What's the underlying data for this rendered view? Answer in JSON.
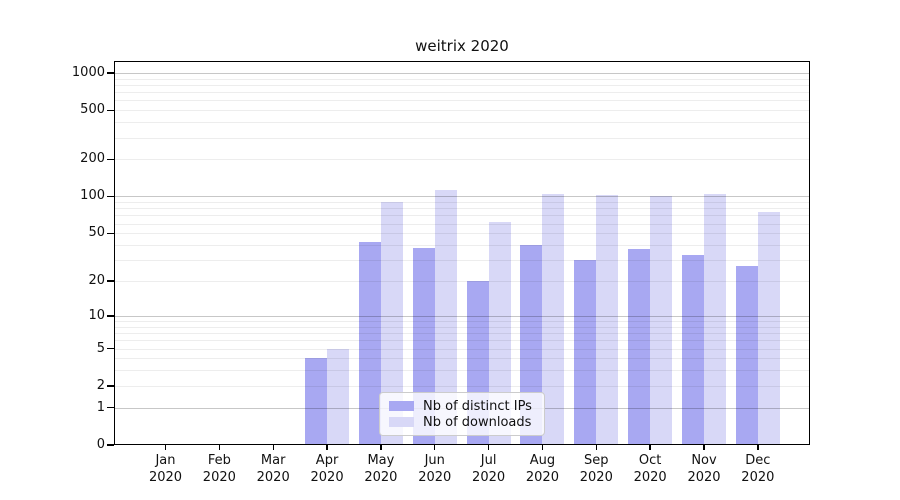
{
  "title": "weitrix 2020",
  "chart_data": {
    "type": "bar",
    "title": "weitrix 2020",
    "categories": [
      {
        "label": "Jan",
        "sub": "2020"
      },
      {
        "label": "Feb",
        "sub": "2020"
      },
      {
        "label": "Mar",
        "sub": "2020"
      },
      {
        "label": "Apr",
        "sub": "2020"
      },
      {
        "label": "May",
        "sub": "2020"
      },
      {
        "label": "Jun",
        "sub": "2020"
      },
      {
        "label": "Jul",
        "sub": "2020"
      },
      {
        "label": "Aug",
        "sub": "2020"
      },
      {
        "label": "Sep",
        "sub": "2020"
      },
      {
        "label": "Oct",
        "sub": "2020"
      },
      {
        "label": "Nov",
        "sub": "2020"
      },
      {
        "label": "Dec",
        "sub": "2020"
      }
    ],
    "series": [
      {
        "name": "Nb of distinct IPs",
        "color": "#a8a8f2",
        "values": [
          0,
          0,
          0,
          4,
          42,
          38,
          20,
          40,
          30,
          37,
          33,
          27
        ]
      },
      {
        "name": "Nb of downloads",
        "color": "#d8d8f7",
        "values": [
          0,
          0,
          0,
          5,
          90,
          113,
          62,
          105,
          103,
          101,
          105,
          74
        ]
      }
    ],
    "xlabel": "",
    "ylabel": "",
    "y_axis": {
      "scale": "log10(1 + value)",
      "ticks": [
        0,
        1,
        2,
        5,
        10,
        20,
        50,
        100,
        200,
        500,
        1000
      ],
      "major_gridlines": [
        1,
        10,
        100,
        1000
      ],
      "range": [
        0,
        1200
      ]
    },
    "grid": "horizontal major + log minor gridlines, drawn over bars",
    "legend_position": "inside bottom-center"
  }
}
